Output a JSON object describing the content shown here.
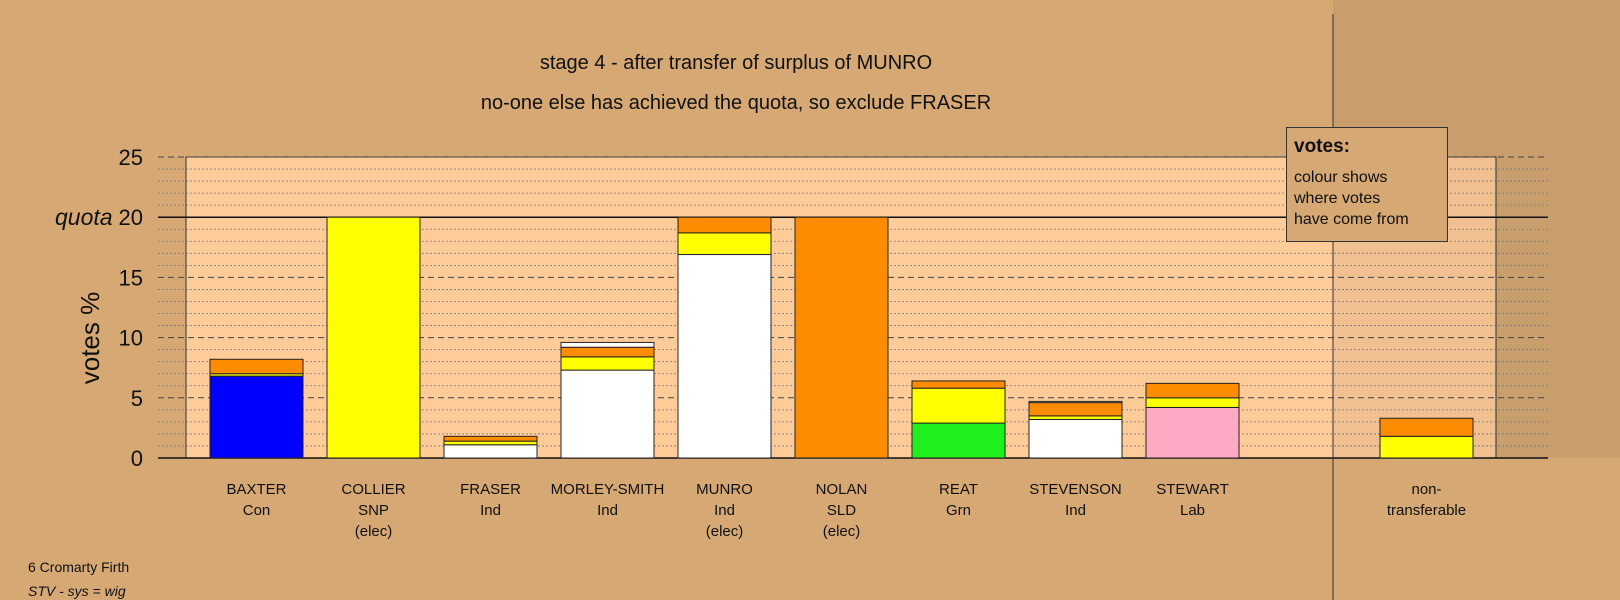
{
  "title": "stage 4 - after transfer of surplus of MUNRO",
  "subtitle": "no-one else has achieved the quota, so exclude FRASER",
  "legend": {
    "title": "votes:",
    "lines": [
      "colour shows",
      "where votes",
      "have come from"
    ]
  },
  "footer": {
    "line1": "6 Cromarty Firth",
    "line2": "STV - sys = wig"
  },
  "colors": {
    "background": "#d6a874",
    "plot_band": "#ffcc99",
    "Con": "#0000ff",
    "SNP": "#ffff00",
    "SLD": "#ff8c00",
    "Grn": "#1ef01e",
    "Lab": "#ffaac4",
    "Ind": "#ffffff"
  },
  "chart_data": {
    "type": "bar",
    "stacked": true,
    "ylabel": "votes %",
    "ylim": [
      0,
      25
    ],
    "yticks": [
      0,
      5,
      10,
      15,
      20,
      25
    ],
    "quota": 20,
    "quota_label": "quota",
    "grid": true,
    "categories": [
      {
        "name": "BAXTER",
        "party": "Con",
        "note": "",
        "segments": [
          {
            "from": "Con",
            "value": 6.8
          },
          {
            "from": "SNP",
            "value": 0.2
          },
          {
            "from": "SLD",
            "value": 1.2
          }
        ]
      },
      {
        "name": "COLLIER",
        "party": "SNP",
        "note": "(elec)",
        "segments": [
          {
            "from": "SNP",
            "value": 20.0
          }
        ]
      },
      {
        "name": "FRASER",
        "party": "Ind",
        "note": "",
        "segments": [
          {
            "from": "Ind",
            "value": 1.1
          },
          {
            "from": "SNP",
            "value": 0.3
          },
          {
            "from": "SLD",
            "value": 0.4
          }
        ]
      },
      {
        "name": "MORLEY-SMITH",
        "party": "Ind",
        "note": "",
        "segments": [
          {
            "from": "Ind",
            "value": 7.3
          },
          {
            "from": "SNP",
            "value": 1.1
          },
          {
            "from": "SLD",
            "value": 0.8
          },
          {
            "from": "Ind",
            "value": 0.4
          }
        ]
      },
      {
        "name": "MUNRO",
        "party": "Ind",
        "note": "(elec)",
        "segments": [
          {
            "from": "Ind",
            "value": 16.9
          },
          {
            "from": "SNP",
            "value": 1.8
          },
          {
            "from": "SLD",
            "value": 1.3
          }
        ]
      },
      {
        "name": "NOLAN",
        "party": "SLD",
        "note": "(elec)",
        "segments": [
          {
            "from": "SLD",
            "value": 20.0
          }
        ]
      },
      {
        "name": "REAT",
        "party": "Grn",
        "note": "",
        "segments": [
          {
            "from": "Grn",
            "value": 2.9
          },
          {
            "from": "SNP",
            "value": 2.9
          },
          {
            "from": "SLD",
            "value": 0.6
          }
        ]
      },
      {
        "name": "STEVENSON",
        "party": "Ind",
        "note": "",
        "segments": [
          {
            "from": "Ind",
            "value": 3.2
          },
          {
            "from": "SNP",
            "value": 0.3
          },
          {
            "from": "SLD",
            "value": 1.1
          },
          {
            "from": "Ind",
            "value": 0.1
          }
        ]
      },
      {
        "name": "STEWART",
        "party": "Lab",
        "note": "",
        "segments": [
          {
            "from": "Lab",
            "value": 4.2
          },
          {
            "from": "SNP",
            "value": 0.8
          },
          {
            "from": "SLD",
            "value": 1.2
          }
        ]
      }
    ],
    "nontransferable": {
      "label_lines": [
        "non-",
        "transferable"
      ],
      "segments": [
        {
          "from": "SNP",
          "value": 1.8
        },
        {
          "from": "SLD",
          "value": 1.5
        }
      ]
    }
  }
}
